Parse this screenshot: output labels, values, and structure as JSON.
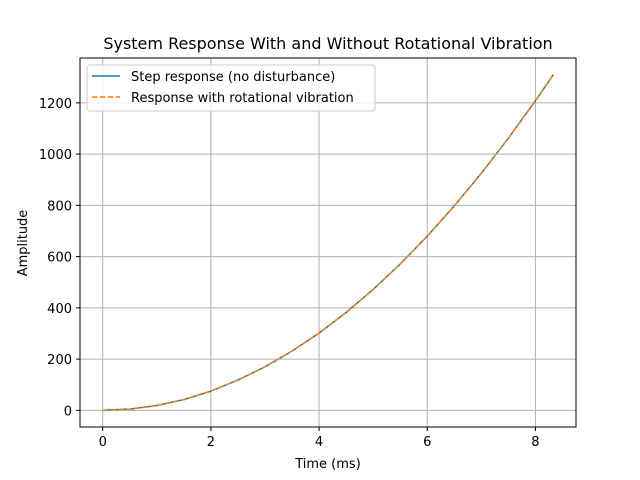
{
  "chart_data": {
    "type": "line",
    "title": "System Response With and Without Rotational Vibration",
    "xlabel": "Time (ms)",
    "ylabel": "Amplitude",
    "xlim": [
      -0.42,
      8.75
    ],
    "ylim": [
      -65,
      1375
    ],
    "xticks": [
      0,
      2,
      4,
      6,
      8
    ],
    "yticks": [
      0,
      200,
      400,
      600,
      800,
      1000,
      1200
    ],
    "grid": true,
    "legend_position": "top-left",
    "series": [
      {
        "name": "Step response (no disturbance)",
        "color": "#1f77b4",
        "style": "solid",
        "x": [
          0,
          0.5,
          1,
          1.5,
          2,
          2.5,
          3,
          3.5,
          4,
          4.5,
          5,
          5.5,
          6,
          6.5,
          7,
          7.5,
          8,
          8.33
        ],
        "y": [
          0,
          4.7,
          19,
          42,
          75,
          118,
          170,
          231,
          302,
          382,
          472,
          571,
          680,
          798,
          925,
          1062,
          1208,
          1310
        ]
      },
      {
        "name": "Response with rotational vibration",
        "color": "#ff7f0e",
        "style": "dashed",
        "x": [
          0,
          0.5,
          1,
          1.5,
          2,
          2.5,
          3,
          3.5,
          4,
          4.5,
          5,
          5.5,
          6,
          6.5,
          7,
          7.5,
          8,
          8.33
        ],
        "y": [
          0,
          4.7,
          19,
          42,
          75,
          118,
          170,
          231,
          302,
          382,
          472,
          571,
          680,
          798,
          925,
          1062,
          1208,
          1310
        ]
      }
    ]
  }
}
